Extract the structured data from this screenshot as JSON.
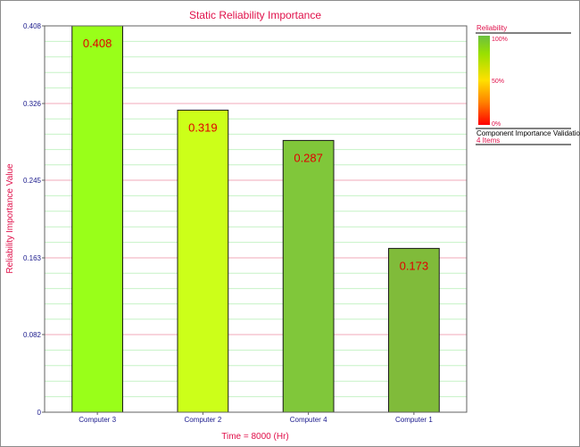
{
  "chart_data": {
    "type": "bar",
    "title": "Static Reliability Importance",
    "xlabel": "Time = 8000 (Hr)",
    "ylabel": "Reliability Importance Value",
    "categories": [
      "Computer 3",
      "Computer 2",
      "Computer 4",
      "Computer 1"
    ],
    "values": [
      0.408,
      0.319,
      0.287,
      0.173
    ],
    "value_labels": [
      "0.408",
      "0.319",
      "0.287",
      "0.173"
    ],
    "bar_colors": [
      "#99ff19",
      "#ccff19",
      "#80c73a",
      "#80bb3a"
    ],
    "ylim": [
      0,
      0.408
    ],
    "yticks": [
      0,
      0.082,
      0.163,
      0.245,
      0.326,
      0.408
    ],
    "ytick_labels": [
      "0",
      "0.082",
      "0.163",
      "0.245",
      "0.326",
      "0.408"
    ],
    "grid": true,
    "legend": {
      "position": "right",
      "title": "Reliability",
      "scale_labels": [
        "100%",
        "50%",
        "0%"
      ],
      "subtitle": "Component Importance Validation",
      "count": "4 Items"
    }
  },
  "colors": {
    "title": "#e0104a",
    "axis_text": "#1a1a8c",
    "value_label": "#e00000",
    "major_grid": "#f2aab8",
    "minor_grid": "#c6f2c6"
  }
}
